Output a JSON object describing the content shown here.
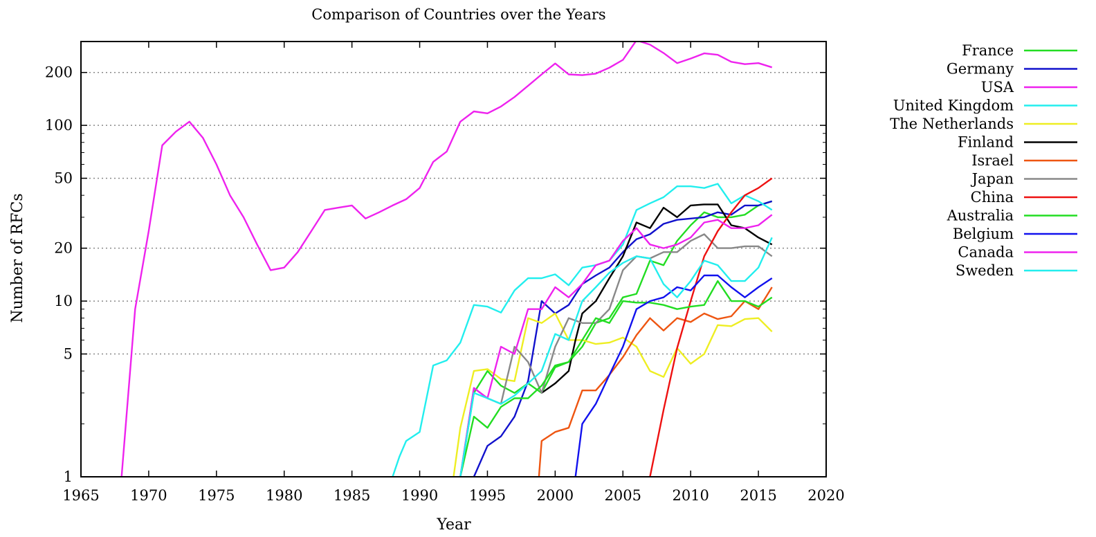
{
  "chart_data": {
    "type": "line",
    "title": "Comparison of Countries over the Years",
    "xlabel": "Year",
    "ylabel": "Number of RFCs",
    "xlim": [
      1965,
      2020
    ],
    "ylim": [
      1,
      300
    ],
    "yscale": "log",
    "grid": "horizontal-dotted",
    "legend_position": "right",
    "x_ticks": [
      1965,
      1970,
      1975,
      1980,
      1985,
      1990,
      1995,
      2000,
      2005,
      2010,
      2015,
      2020
    ],
    "x_tick_labels": [
      "1965",
      "1970",
      "1975",
      "1980",
      "1985",
      "1990",
      "1995",
      "2000",
      "2005",
      "2010",
      "2015",
      "2020"
    ],
    "y_ticks": [
      1,
      5,
      10,
      20,
      50,
      100,
      200
    ],
    "y_tick_labels": [
      "1",
      "5",
      "10",
      "20",
      "50",
      "100",
      "200"
    ],
    "series": [
      {
        "name": "France",
        "color": "#22dd22",
        "x": [
          1993,
          1994,
          1995,
          1996,
          1997,
          1998,
          1999,
          2000,
          2001,
          2002,
          2003,
          2004,
          2005,
          2006,
          2007,
          2008,
          2009,
          2010,
          2011,
          2012,
          2013,
          2014,
          2015,
          2016
        ],
        "y": [
          1,
          3,
          4,
          3.3,
          3,
          3.4,
          3,
          4.2,
          4.5,
          5.5,
          7.5,
          8,
          10.5,
          11,
          17,
          16,
          22,
          27,
          32,
          30,
          30,
          31,
          35,
          37
        ]
      },
      {
        "name": "Germany",
        "color": "#1111cc",
        "x": [
          1994,
          1995,
          1996,
          1997,
          1998,
          1999,
          2000,
          2001,
          2002,
          2003,
          2004,
          2005,
          2006,
          2007,
          2008,
          2009,
          2010,
          2011,
          2012,
          2013,
          2014,
          2015,
          2016
        ],
        "y": [
          1,
          1.5,
          1.7,
          2.2,
          3.5,
          10,
          8.5,
          9.5,
          12.5,
          14,
          15.5,
          19,
          22.5,
          24,
          27.5,
          29,
          29.5,
          30,
          32,
          31,
          35,
          35,
          37
        ]
      },
      {
        "name": "USA",
        "color": "#ee22ee",
        "x": [
          1968,
          1969,
          1970,
          1971,
          1972,
          1973,
          1974,
          1975,
          1976,
          1977,
          1978,
          1979,
          1980,
          1981,
          1982,
          1983,
          1984,
          1985,
          1986,
          1987,
          1988,
          1989,
          1990,
          1991,
          1992,
          1993,
          1994,
          1995,
          1996,
          1997,
          1998,
          1999,
          2000,
          2001,
          2002,
          2003,
          2004,
          2005,
          2006,
          2007,
          2008,
          2009,
          2010,
          2011,
          2012,
          2013,
          2014,
          2015,
          2016
        ],
        "y": [
          1,
          9,
          25,
          77,
          92,
          105,
          85,
          60,
          40,
          30,
          21,
          15,
          15.5,
          19,
          25,
          33,
          34,
          35,
          29.5,
          32,
          35,
          38,
          44,
          62,
          71,
          105,
          120,
          117,
          128,
          145,
          168,
          195,
          225,
          195,
          193,
          197,
          213,
          236,
          305,
          288,
          258,
          226,
          240,
          257,
          252,
          230,
          223,
          226,
          214
        ]
      },
      {
        "name": "United Kingdom",
        "color": "#22eeee",
        "x": [
          1988,
          1988.5,
          1989,
          1990,
          1991,
          1992,
          1993,
          1994,
          1995,
          1996,
          1997,
          1998,
          1999,
          2000,
          2001,
          2002,
          2003,
          2004,
          2005,
          2006,
          2007,
          2008,
          2009,
          2010,
          2011,
          2012,
          2013,
          2014,
          2015,
          2016
        ],
        "y": [
          1,
          1.3,
          1.6,
          1.8,
          4.3,
          4.6,
          5.8,
          9.5,
          9.3,
          8.6,
          11.5,
          13.5,
          13.5,
          14.2,
          12.3,
          15.5,
          16,
          17,
          21,
          33,
          36,
          39,
          45,
          45,
          44,
          46.5,
          36,
          40,
          37,
          33
        ]
      },
      {
        "name": "The Netherlands",
        "color": "#eeee22",
        "x": [
          1992.5,
          1993,
          1994,
          1995,
          1996,
          1997,
          1998,
          1999,
          2000,
          2001,
          2002,
          2003,
          2004,
          2005,
          2006,
          2007,
          2008,
          2009,
          2010,
          2011,
          2012,
          2013,
          2014,
          2015,
          2016
        ],
        "y": [
          1,
          1.9,
          4,
          4.1,
          3.6,
          3.5,
          8,
          7.5,
          8.5,
          6,
          6,
          5.7,
          5.8,
          6.2,
          5.5,
          4,
          3.7,
          5.4,
          4.4,
          5,
          7.3,
          7.2,
          7.9,
          8,
          6.7
        ]
      },
      {
        "name": "Finland",
        "color": "#000000",
        "x": [
          1999,
          2000,
          2001,
          2001.5,
          2002,
          2003,
          2004,
          2005,
          2006,
          2007,
          2008,
          2009,
          2010,
          2011,
          2012,
          2013,
          2014,
          2015,
          2016
        ],
        "y": [
          3,
          3.4,
          4,
          6,
          8.5,
          10,
          13.5,
          18,
          28,
          26,
          34,
          30,
          35,
          35.5,
          35.5,
          27,
          26,
          23,
          21
        ]
      },
      {
        "name": "Israel",
        "color": "#ee5511",
        "x": [
          1998.8,
          1999,
          2000,
          2001,
          2002,
          2003,
          2004,
          2005,
          2006,
          2007,
          2008,
          2009,
          2010,
          2011,
          2012,
          2013,
          2014,
          2015,
          2016
        ],
        "y": [
          1,
          1.6,
          1.8,
          1.9,
          3.1,
          3.1,
          3.8,
          4.8,
          6.4,
          8,
          6.8,
          8,
          7.6,
          8.5,
          7.9,
          8.2,
          10,
          9,
          12
        ]
      },
      {
        "name": "Japan",
        "color": "#888888",
        "x": [
          1993,
          1994,
          1995,
          1996,
          1997,
          1998,
          1999,
          2000,
          2001,
          2002,
          2003,
          2004,
          2005,
          2006,
          2007,
          2008,
          2009,
          2010,
          2011,
          2012,
          2013,
          2014,
          2015,
          2016
        ],
        "y": [
          1,
          3.2,
          2.8,
          2.6,
          5.5,
          4.5,
          3,
          5.5,
          8,
          7.5,
          7.5,
          9,
          15,
          18,
          17.5,
          19,
          19,
          22,
          24,
          20,
          20,
          20.5,
          20.5,
          18
        ]
      },
      {
        "name": "China",
        "color": "#ee1111",
        "x": [
          2007,
          2008,
          2009,
          2010,
          2011,
          2012,
          2013,
          2014,
          2015,
          2016
        ],
        "y": [
          1,
          2.4,
          5.4,
          10,
          18,
          25,
          32,
          40,
          44,
          50
        ]
      },
      {
        "name": "Australia",
        "color": "#22dd22",
        "x": [
          1993,
          1994,
          1995,
          1996,
          1997,
          1998,
          1999,
          2000,
          2001,
          2002,
          2003,
          2004,
          2005,
          2006,
          2007,
          2008,
          2009,
          2010,
          2011,
          2012,
          2013,
          2014,
          2015,
          2016
        ],
        "y": [
          1,
          2.2,
          1.9,
          2.5,
          2.8,
          2.8,
          3.3,
          4.3,
          4.5,
          6,
          8,
          7.5,
          10,
          9.8,
          9.8,
          9.5,
          9,
          9.3,
          9.5,
          13,
          10,
          10,
          9.3,
          10.5
        ]
      },
      {
        "name": "Belgium",
        "color": "#1111ee",
        "x": [
          2001.5,
          2002,
          2003,
          2004,
          2005,
          2006,
          2007,
          2008,
          2009,
          2010,
          2011,
          2012,
          2013,
          2014,
          2015,
          2016
        ],
        "y": [
          1,
          2,
          2.6,
          3.8,
          5.5,
          9,
          10,
          10.5,
          12,
          11.5,
          14,
          14,
          12,
          10.5,
          12,
          13.5
        ]
      },
      {
        "name": "Canada",
        "color": "#ee22ee",
        "x": [
          1993,
          1994,
          1995,
          1996,
          1997,
          1998,
          1999,
          2000,
          2001,
          2002,
          2003,
          2004,
          2005,
          2006,
          2007,
          2008,
          2009,
          2010,
          2011,
          2012,
          2013,
          2014,
          2015,
          2016
        ],
        "y": [
          1,
          3.2,
          2.8,
          5.5,
          5,
          9,
          9,
          12,
          10.5,
          12.5,
          16,
          17,
          22,
          26,
          21,
          20,
          21,
          23,
          28,
          29,
          26,
          26,
          27,
          31
        ]
      },
      {
        "name": "Sweden",
        "color": "#22eeee",
        "x": [
          1993,
          1994,
          1995,
          1996,
          1997,
          1998,
          1999,
          2000,
          2001,
          2002,
          2003,
          2004,
          2005,
          2006,
          2007,
          2008,
          2009,
          2010,
          2011,
          2012,
          2013,
          2014,
          2015,
          2016
        ],
        "y": [
          1,
          3,
          2.8,
          2.6,
          2.9,
          3.4,
          4,
          6.5,
          6,
          10,
          12,
          14.5,
          16.5,
          18,
          17.5,
          12.5,
          10.5,
          13,
          17,
          16,
          13,
          13,
          15.5,
          23
        ]
      }
    ]
  }
}
